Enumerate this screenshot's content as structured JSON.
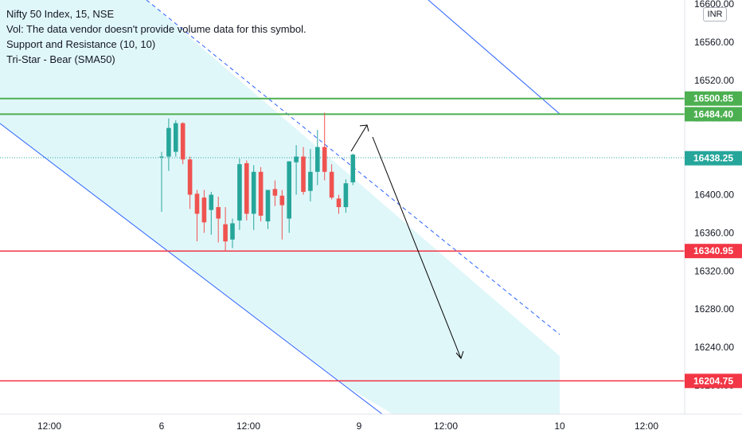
{
  "legend": {
    "symbol_line": "Nifty 50 Index, 15, NSE",
    "volume_line": "Vol: The data vendor doesn't provide volume data for this symbol.",
    "indicator_1": "Support and Resistance (10, 10)",
    "indicator_2": "Tri-Star - Bear (SMA50)"
  },
  "currency": "INR",
  "colors": {
    "up": "#26a69a",
    "down": "#ef5350",
    "resistance": "#4caf50",
    "support": "#f23645",
    "channel_line": "#2962ff",
    "channel_fill": "#e0f7fa",
    "last_price": "#26a69a",
    "arrow": "#000000"
  },
  "chart_data": {
    "type": "candlestick",
    "ylim": [
      16180,
      16620
    ],
    "y_ticks": [
      "16600.00",
      "16560.00",
      "16520.00",
      "16480.00",
      "16440.00",
      "16400.00",
      "16360.00",
      "16320.00",
      "16280.00",
      "16240.00",
      "16200.00"
    ],
    "x_tick_labels": [
      "12:00",
      "6",
      "12:00",
      "9",
      "12:00",
      "10",
      "12:00"
    ],
    "horizontal_levels": [
      {
        "label": "16500.85",
        "value": 16500.85,
        "kind": "resistance"
      },
      {
        "label": "16484.40",
        "value": 16484.4,
        "kind": "resistance"
      },
      {
        "label": "16340.95",
        "value": 16340.95,
        "kind": "support"
      },
      {
        "label": "16204.75",
        "value": 16204.75,
        "kind": "support"
      }
    ],
    "last_price": {
      "label": "16438.25",
      "value": 16438.25
    },
    "candles": [
      {
        "o": 16440,
        "h": 16445,
        "l": 16382,
        "c": 16440
      },
      {
        "o": 16440,
        "h": 16480,
        "l": 16425,
        "c": 16470
      },
      {
        "o": 16445,
        "h": 16478,
        "l": 16440,
        "c": 16475
      },
      {
        "o": 16475,
        "h": 16476,
        "l": 16432,
        "c": 16437
      },
      {
        "o": 16437,
        "h": 16440,
        "l": 16385,
        "c": 16400
      },
      {
        "o": 16401,
        "h": 16405,
        "l": 16351,
        "c": 16380
      },
      {
        "o": 16397,
        "h": 16405,
        "l": 16360,
        "c": 16371
      },
      {
        "o": 16384,
        "h": 16403,
        "l": 16358,
        "c": 16400
      },
      {
        "o": 16387,
        "h": 16398,
        "l": 16350,
        "c": 16375
      },
      {
        "o": 16369,
        "h": 16387,
        "l": 16341,
        "c": 16351
      },
      {
        "o": 16353,
        "h": 16375,
        "l": 16344,
        "c": 16370
      },
      {
        "o": 16373,
        "h": 16438,
        "l": 16363,
        "c": 16432
      },
      {
        "o": 16433,
        "h": 16436,
        "l": 16373,
        "c": 16380
      },
      {
        "o": 16380,
        "h": 16431,
        "l": 16363,
        "c": 16424
      },
      {
        "o": 16424,
        "h": 16429,
        "l": 16372,
        "c": 16378
      },
      {
        "o": 16372,
        "h": 16405,
        "l": 16364,
        "c": 16405
      },
      {
        "o": 16406,
        "h": 16415,
        "l": 16388,
        "c": 16399
      },
      {
        "o": 16399,
        "h": 16405,
        "l": 16353,
        "c": 16389
      },
      {
        "o": 16375,
        "h": 16435,
        "l": 16360,
        "c": 16435
      },
      {
        "o": 16434,
        "h": 16452,
        "l": 16400,
        "c": 16440
      },
      {
        "o": 16440,
        "h": 16450,
        "l": 16400,
        "c": 16403
      },
      {
        "o": 16404,
        "h": 16448,
        "l": 16393,
        "c": 16424
      },
      {
        "o": 16424,
        "h": 16468,
        "l": 16410,
        "c": 16450
      },
      {
        "o": 16450,
        "h": 16486,
        "l": 16415,
        "c": 16424
      },
      {
        "o": 16424,
        "h": 16432,
        "l": 16395,
        "c": 16397
      },
      {
        "o": 16396,
        "h": 16400,
        "l": 16380,
        "c": 16387
      },
      {
        "o": 16387,
        "h": 16416,
        "l": 16381,
        "c": 16412
      },
      {
        "o": 16413,
        "h": 16443,
        "l": 16410,
        "c": 16442
      }
    ]
  }
}
